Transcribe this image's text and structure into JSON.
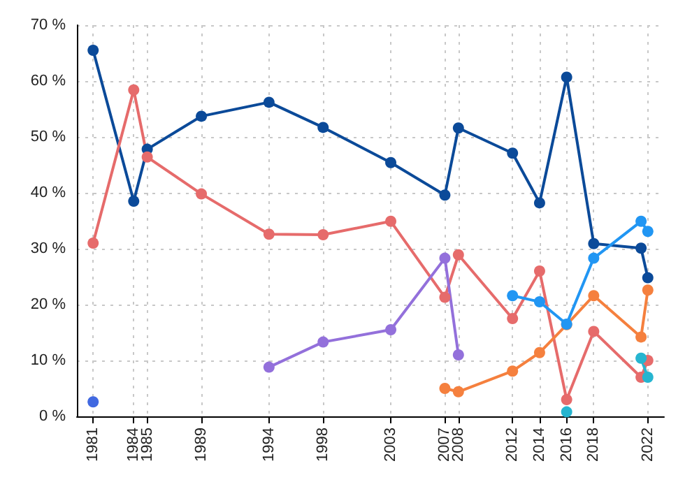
{
  "chart_data": {
    "type": "line",
    "marker": "circle",
    "grid": true,
    "xlim": [
      1979.8,
      2023.2
    ],
    "xticks": [
      1981,
      1984,
      1985,
      1989,
      1994,
      1998,
      2003,
      2007,
      2008,
      2012,
      2014,
      2016,
      2018,
      2022
    ],
    "ylim": [
      0,
      70
    ],
    "yticks": [
      {
        "value": 0,
        "label": "0 %"
      },
      {
        "value": 10,
        "label": "10 %"
      },
      {
        "value": 20,
        "label": "20 %"
      },
      {
        "value": 30,
        "label": "30 %"
      },
      {
        "value": 40,
        "label": "40 %"
      },
      {
        "value": 50,
        "label": "50 %"
      },
      {
        "value": 60,
        "label": "60 %"
      },
      {
        "value": 70,
        "label": "70 %"
      }
    ],
    "series": [
      {
        "color": "#0b4a99",
        "x": [
          1981,
          1984,
          1985,
          1989,
          1994,
          1998,
          2003,
          2007,
          2008,
          2012,
          2014,
          2016,
          2018,
          2021.5,
          2022
        ],
        "values": [
          65.5,
          38.5,
          47.8,
          53.7,
          56.2,
          51.7,
          45.4,
          39.6,
          51.6,
          47.1,
          38.2,
          60.7,
          30.9,
          30.1,
          24.8
        ]
      },
      {
        "color": "#e66b6b",
        "x": [
          1981,
          1984,
          1985,
          1989,
          1994,
          1998,
          2003,
          2007,
          2008,
          2012,
          2014,
          2016,
          2018,
          2021.5,
          2022
        ],
        "values": [
          31.0,
          58.4,
          46.4,
          39.8,
          32.6,
          32.5,
          34.9,
          21.3,
          28.9,
          17.5,
          26.0,
          3.0,
          15.2,
          7.0,
          10.0
        ]
      },
      {
        "color": "#9370db",
        "x": [
          1994,
          1998,
          2003,
          2007,
          2008
        ],
        "values": [
          8.8,
          13.3,
          15.5,
          28.3,
          11.0
        ]
      },
      {
        "color": "#f5803e",
        "x": [
          2007,
          2008,
          2012,
          2014,
          2016,
          2018,
          2021.5,
          2022
        ],
        "values": [
          5.0,
          4.4,
          8.1,
          11.4,
          16.4,
          21.6,
          14.2,
          22.6
        ]
      },
      {
        "color": "#2196f3",
        "x": [
          2012,
          2014,
          2016,
          2018,
          2021.5,
          2022
        ],
        "values": [
          21.6,
          20.5,
          16.5,
          28.3,
          34.9,
          33.1
        ]
      },
      {
        "color": "#26b5d0",
        "x": [
          2016,
          2018,
          2021.5,
          2022
        ],
        "values": [
          0.8,
          null,
          10.4,
          7.0
        ]
      },
      {
        "color": "#4169e1",
        "x": [
          1981
        ],
        "values": [
          2.6
        ]
      }
    ]
  }
}
